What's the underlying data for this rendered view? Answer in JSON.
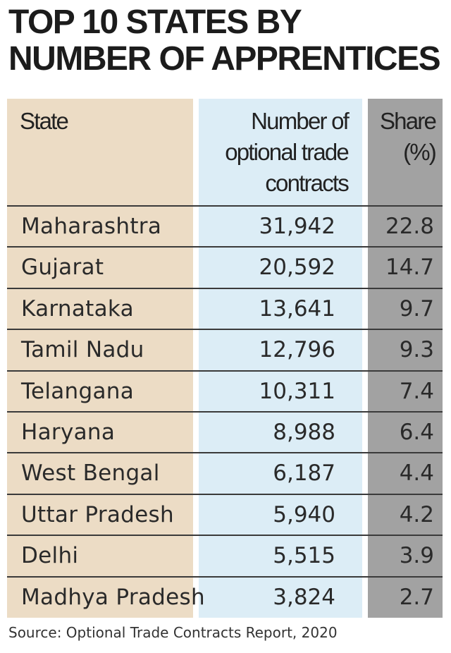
{
  "title": "TOP 10 STATES BY NUMBER OF APPRENTICES",
  "headers": {
    "state": "State",
    "number": [
      "Number of",
      "optional trade",
      "contracts"
    ],
    "share": [
      "Share",
      "(%)"
    ]
  },
  "colors": {
    "state_col": "#ecdcc5",
    "number_col": "#dcedf6",
    "share_col": "#a2a2a2"
  },
  "rows": [
    {
      "state": "Maharashtra",
      "number": "31,942",
      "share": "22.8"
    },
    {
      "state": "Gujarat",
      "number": "20,592",
      "share": "14.7"
    },
    {
      "state": "Karnataka",
      "number": "13,641",
      "share": "9.7"
    },
    {
      "state": "Tamil Nadu",
      "number": "12,796",
      "share": "9.3"
    },
    {
      "state": "Telangana",
      "number": "10,311",
      "share": "7.4"
    },
    {
      "state": "Haryana",
      "number": "8,988",
      "share": "6.4"
    },
    {
      "state": "West Bengal",
      "number": "6,187",
      "share": "4.4"
    },
    {
      "state": "Uttar Pradesh",
      "number": "5,940",
      "share": "4.2"
    },
    {
      "state": "Delhi",
      "number": "5,515",
      "share": "3.9"
    },
    {
      "state": "Madhya Pradesh",
      "number": "3,824",
      "share": "2.7"
    }
  ],
  "source": "Source: Optional Trade Contracts Report, 2020",
  "chart_data": {
    "type": "table",
    "title": "TOP 10 STATES BY NUMBER OF APPRENTICES",
    "columns": [
      "State",
      "Number of optional trade contracts",
      "Share (%)"
    ],
    "rows": [
      [
        "Maharashtra",
        31942,
        22.8
      ],
      [
        "Gujarat",
        20592,
        14.7
      ],
      [
        "Karnataka",
        13641,
        9.7
      ],
      [
        "Tamil Nadu",
        12796,
        9.3
      ],
      [
        "Telangana",
        10311,
        7.4
      ],
      [
        "Haryana",
        8988,
        6.4
      ],
      [
        "West Bengal",
        6187,
        4.4
      ],
      [
        "Uttar Pradesh",
        5940,
        4.2
      ],
      [
        "Delhi",
        5515,
        3.9
      ],
      [
        "Madhya Pradesh",
        3824,
        2.7
      ]
    ]
  }
}
